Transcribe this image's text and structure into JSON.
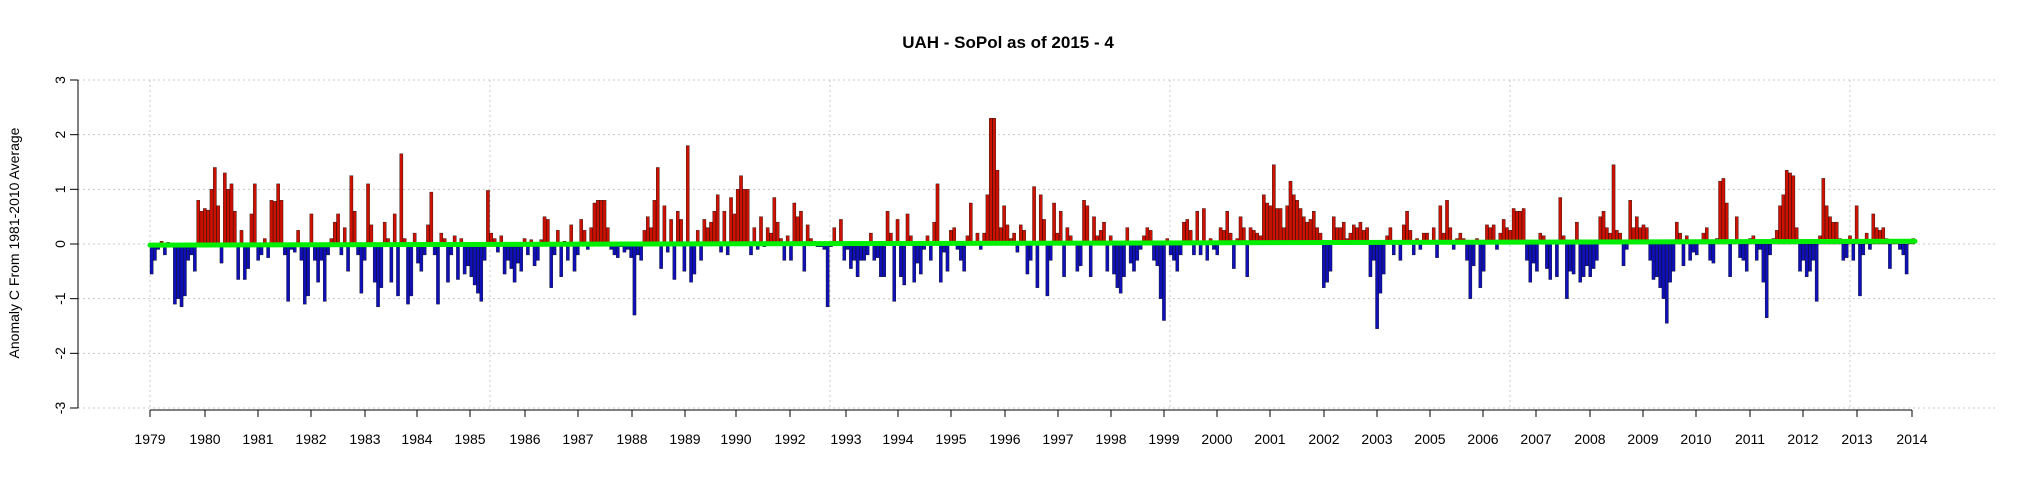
{
  "chart_data": {
    "type": "bar",
    "title": "UAH - SoPol as of  2015 - 4",
    "xlabel": "",
    "ylabel": "Anomaly C From 1981-2010 Average",
    "ylim": [
      -3,
      3
    ],
    "yticks": [
      -3,
      -2,
      -1,
      0,
      1,
      2,
      3
    ],
    "xticks": [
      "1979",
      "1980",
      "1981",
      "1982",
      "1983",
      "1984",
      "1985",
      "1986",
      "1987",
      "1988",
      "1989",
      "1990",
      "1992",
      "1993",
      "1994",
      "1995",
      "1996",
      "1997",
      "1998",
      "1999",
      "2000",
      "2001",
      "2002",
      "2003",
      "2005",
      "2006",
      "2007",
      "2008",
      "2009",
      "2010",
      "2011",
      "2012",
      "2013",
      "2014"
    ],
    "grid": true,
    "colors": {
      "positive": "#cc1100",
      "negative": "#1010b8",
      "trend": "#00ee00"
    },
    "x_start": "1979-01",
    "x_end": "2015-04",
    "trend": {
      "start": -0.02,
      "end": 0.05
    },
    "values": [
      -0.55,
      -0.3,
      -0.1,
      0.05,
      -0.2,
      0.03,
      -0.05,
      -1.1,
      -1.0,
      -1.15,
      -0.95,
      -0.3,
      -0.2,
      -0.5,
      0.8,
      0.6,
      0.65,
      0.62,
      1.0,
      1.4,
      0.7,
      -0.35,
      1.3,
      1.0,
      1.1,
      0.6,
      -0.65,
      0.25,
      -0.65,
      -0.45,
      0.55,
      1.1,
      -0.3,
      -0.2,
      0.1,
      -0.25,
      0.8,
      0.78,
      1.1,
      0.8,
      -0.2,
      -1.05,
      -0.1,
      -0.15,
      0.25,
      -0.3,
      -1.1,
      -0.95,
      0.55,
      -0.3,
      -0.7,
      -0.3,
      -1.05,
      -0.2,
      0.1,
      0.4,
      0.55,
      -0.2,
      0.3,
      -0.5,
      1.25,
      0.6,
      -0.2,
      -0.9,
      -0.3,
      1.1,
      0.35,
      -0.7,
      -1.15,
      -0.8,
      0.4,
      0.1,
      -0.7,
      0.55,
      -0.95,
      1.65,
      0.1,
      -1.1,
      -0.95,
      0.2,
      -0.35,
      -0.5,
      -0.2,
      0.35,
      0.95,
      -0.2,
      -1.1,
      0.2,
      0.1,
      -0.7,
      -0.2,
      0.15,
      -0.65,
      0.1,
      -0.55,
      -0.4,
      -0.6,
      -0.75,
      -0.9,
      -1.05,
      -0.3,
      0.98,
      0.2,
      0.1,
      -0.15,
      0.15,
      -0.55,
      -0.3,
      -0.45,
      -0.7,
      -0.35,
      -0.5,
      0.1,
      -0.2,
      0.08,
      -0.4,
      -0.3,
      0.08,
      0.5,
      0.45,
      -0.8,
      -0.2,
      0.25,
      -0.6,
      0.05,
      -0.3,
      0.35,
      -0.5,
      -0.2,
      0.45,
      0.25,
      -0.1,
      0.3,
      0.75,
      0.8,
      0.8,
      0.8,
      0.3,
      -0.1,
      -0.2,
      -0.25,
      -0.05,
      -0.15,
      -0.1,
      -0.25,
      -1.3,
      -0.2,
      -0.3,
      0.25,
      0.5,
      0.3,
      0.8,
      1.4,
      -0.45,
      0.7,
      -0.15,
      0.45,
      -0.65,
      0.6,
      0.45,
      -0.5,
      1.8,
      -0.7,
      -0.55,
      0.25,
      -0.3,
      0.45,
      0.3,
      0.4,
      0.6,
      0.9,
      -0.15,
      0.6,
      -0.2,
      0.85,
      0.55,
      1.0,
      1.25,
      1.0,
      1.0,
      -0.2,
      0.3,
      -0.1,
      0.5,
      -0.05,
      0.3,
      0.2,
      0.85,
      0.4,
      0.1,
      -0.3,
      0.15,
      -0.3,
      0.75,
      0.5,
      0.6,
      -0.5,
      0.35,
      0.1,
      0.05,
      -0.05,
      -0.05,
      -0.1,
      -1.15,
      -0.05,
      0.3,
      0.05,
      0.45,
      -0.3,
      -0.1,
      -0.45,
      -0.3,
      -0.6,
      -0.3,
      -0.3,
      -0.2,
      0.2,
      -0.3,
      -0.25,
      -0.6,
      -0.6,
      0.6,
      0.2,
      -1.05,
      0.45,
      -0.6,
      -0.75,
      0.55,
      0.15,
      -0.7,
      -0.35,
      -0.55,
      -0.1,
      0.15,
      -0.3,
      0.4,
      1.1,
      -0.7,
      -0.15,
      -0.5,
      0.25,
      0.3,
      -0.1,
      -0.3,
      -0.5,
      0.15,
      0.75,
      0.05,
      0.2,
      -0.1,
      0.2,
      0.9,
      2.3,
      2.3,
      1.35,
      0.3,
      0.7,
      0.35,
      0.1,
      0.2,
      -0.15,
      0.35,
      0.25,
      -0.55,
      -0.3,
      1.05,
      -0.8,
      0.9,
      0.45,
      -0.95,
      -0.3,
      0.75,
      0.2,
      0.6,
      -0.6,
      0.3,
      0.15,
      0.05,
      -0.5,
      -0.4,
      0.8,
      0.7,
      -0.6,
      0.5,
      0.15,
      0.25,
      0.4,
      -0.5,
      0.15,
      -0.55,
      -0.8,
      -0.9,
      -0.6,
      0.3,
      -0.35,
      -0.5,
      -0.3,
      -0.1,
      0.15,
      0.3,
      0.25,
      -0.3,
      -0.4,
      -1.0,
      -1.4,
      0.1,
      -0.2,
      -0.3,
      -0.5,
      -0.2,
      0.4,
      0.45,
      0.25,
      -0.2,
      0.6,
      -0.2,
      0.65,
      -0.3,
      0.1,
      -0.1,
      -0.2,
      0.3,
      0.25,
      0.6,
      0.2,
      -0.45,
      0.1,
      0.5,
      0.3,
      -0.6,
      0.3,
      0.25,
      0.2,
      0.15,
      0.9,
      0.75,
      0.7,
      1.45,
      0.65,
      0.65,
      0.3,
      0.7,
      1.15,
      0.9,
      0.8,
      0.65,
      0.5,
      0.4,
      0.45,
      0.6,
      0.3,
      0.2,
      -0.8,
      -0.7,
      -0.5,
      0.5,
      0.3,
      0.3,
      0.4,
      0.1,
      0.2,
      0.35,
      0.3,
      0.4,
      0.25,
      0.3,
      -0.6,
      -0.3,
      -1.55,
      -0.9,
      -0.55,
      0.15,
      0.3,
      -0.2,
      0.05,
      -0.3,
      0.35,
      0.6,
      0.25,
      -0.2,
      0.1,
      -0.1,
      0.2,
      0.2,
      0.05,
      0.3,
      -0.25,
      0.7,
      0.2,
      0.8,
      0.3,
      -0.1,
      0.1,
      0.2,
      0.1,
      -0.3,
      -1.0,
      -0.4,
      0.1,
      -0.8,
      -0.5,
      0.35,
      0.3,
      0.35,
      -0.1,
      0.2,
      0.45,
      0.3,
      0.25,
      0.65,
      0.6,
      0.6,
      0.65,
      -0.3,
      -0.7,
      -0.35,
      -0.5,
      0.2,
      0.15,
      -0.45,
      -0.65,
      0.05,
      -0.6,
      0.85,
      0.15,
      -1.0,
      -0.5,
      -0.55,
      0.4,
      -0.7,
      -0.6,
      -0.4,
      -0.6,
      -0.45,
      -0.3,
      0.5,
      0.6,
      0.3,
      0.2,
      1.45,
      0.25,
      0.2,
      -0.4,
      -0.1,
      0.8,
      0.3,
      0.5,
      0.3,
      0.35,
      0.3,
      -0.3,
      -0.65,
      -0.6,
      -0.8,
      -1.0,
      -1.45,
      -0.7,
      -0.5,
      0.4,
      0.2,
      -0.4,
      0.15,
      -0.3,
      -0.15,
      -0.2,
      0.05,
      0.2,
      0.3,
      -0.3,
      -0.35,
      0.1,
      1.15,
      1.2,
      0.75,
      -0.6,
      0.05,
      0.5,
      -0.25,
      -0.3,
      -0.5,
      0.1,
      0.15,
      -0.3,
      -0.1,
      -0.7,
      -1.35,
      -0.2,
      0.1,
      0.25,
      0.7,
      0.9,
      1.35,
      1.3,
      1.25,
      0.3,
      -0.5,
      -0.3,
      -0.6,
      -0.5,
      -0.3,
      -1.05,
      0.15,
      1.2,
      0.7,
      0.5,
      0.4,
      0.4,
      0.1,
      -0.3,
      -0.25,
      0.15,
      -0.3,
      0.7,
      -0.95,
      -0.2,
      0.2,
      -0.1,
      0.55,
      0.3,
      0.25,
      0.3,
      0.1,
      -0.45,
      0.05,
      0.05,
      -0.1,
      -0.2,
      -0.55,
      0.05,
      0.1
    ]
  }
}
